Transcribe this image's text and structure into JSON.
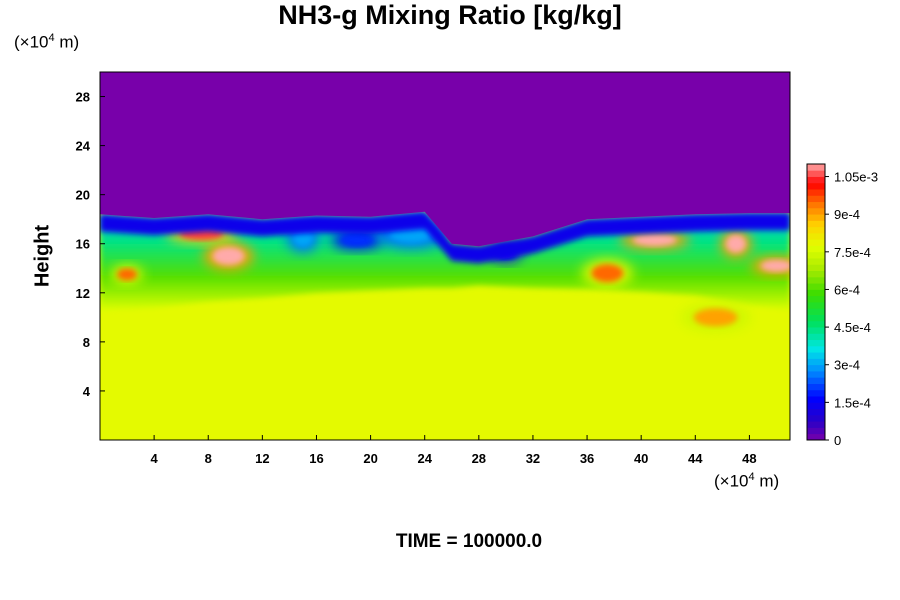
{
  "chart_data": {
    "type": "heatmap",
    "title": "NH3-g Mixing Ratio [kg/kg]",
    "ylabel": "Height",
    "x_unit_prefix": "(×10",
    "x_unit_exp": "4",
    "x_unit_suffix": " m)",
    "y_unit_prefix": "(×10",
    "y_unit_exp": "4",
    "y_unit_suffix": " m)",
    "footer": "TIME = 100000.0",
    "xlim": [
      0,
      51
    ],
    "ylim": [
      0,
      30
    ],
    "x_ticks": [
      4,
      8,
      12,
      16,
      20,
      24,
      28,
      32,
      36,
      40,
      44,
      48
    ],
    "y_ticks": [
      4,
      8,
      12,
      16,
      20,
      24,
      28
    ],
    "colorbar": {
      "range": [
        0,
        0.0011
      ],
      "tick_values": [
        0,
        0.00015,
        0.0003,
        0.00045,
        0.0006,
        0.00075,
        0.0009,
        0.00105
      ],
      "tick_labels": [
        "0",
        "1.5e-4",
        "3e-4",
        "4.5e-4",
        "6e-4",
        "7.5e-4",
        "9e-4",
        "1.05e-3"
      ]
    },
    "background_value": 0.00078,
    "upper_layer_value": 0.0,
    "boundary_heights": {
      "x": [
        0,
        4,
        8,
        12,
        16,
        20,
        24,
        26,
        28,
        32,
        36,
        40,
        44,
        48,
        51
      ],
      "top": [
        18.4,
        18.1,
        18.4,
        18.0,
        18.3,
        18.2,
        18.6,
        16.0,
        15.8,
        16.6,
        18.0,
        18.2,
        18.4,
        18.5,
        18.5
      ],
      "uniform_below": [
        10.5,
        10.8,
        11.3,
        11.6,
        12.0,
        12.2,
        12.4,
        12.4,
        12.6,
        12.4,
        12.3,
        12.1,
        11.8,
        11.0,
        10.6
      ]
    },
    "features": [
      {
        "x": 2.0,
        "y": 13.5,
        "value": 0.00095
      },
      {
        "x": 9.5,
        "y": 15.0,
        "value": 0.0011
      },
      {
        "x": 7.5,
        "y": 16.8,
        "value": 0.00105
      },
      {
        "x": 15.0,
        "y": 16.5,
        "value": 0.0003
      },
      {
        "x": 19.0,
        "y": 16.3,
        "value": 0.0002
      },
      {
        "x": 23.0,
        "y": 16.8,
        "value": 0.0003
      },
      {
        "x": 30.0,
        "y": 15.3,
        "value": 0.00015
      },
      {
        "x": 37.5,
        "y": 13.6,
        "value": 0.00095
      },
      {
        "x": 41.0,
        "y": 16.3,
        "value": 0.0011
      },
      {
        "x": 47.0,
        "y": 16.0,
        "value": 0.0011
      },
      {
        "x": 50.0,
        "y": 14.2,
        "value": 0.0011
      },
      {
        "x": 45.5,
        "y": 10.0,
        "value": 0.0009
      }
    ]
  }
}
